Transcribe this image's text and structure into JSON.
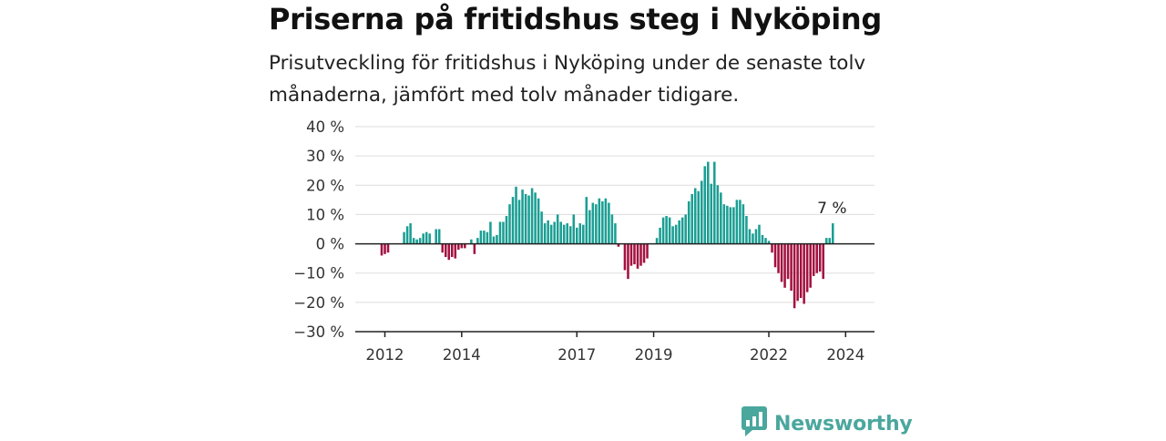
{
  "header": {
    "title": "Priserna på fritidshus steg i Nyköping",
    "subtitle": "Prisutveckling för fritidshus i Nyköping under de senaste tolv månaderna, jämfört med tolv månader tidigare."
  },
  "brand": {
    "name": "Newsworthy",
    "icon": "newsworthy-logo-icon",
    "color": "#4aa79d"
  },
  "colors": {
    "positive": "#1a9e93",
    "negative": "#a3103f",
    "grid": "#dddddd",
    "axis": "#222222"
  },
  "chart_data": {
    "type": "bar",
    "title": "Priserna på fritidshus steg i Nyköping",
    "xlabel": "",
    "ylabel": "",
    "ylim": [
      -30,
      40
    ],
    "y_ticks": [
      "40 %",
      "30 %",
      "20 %",
      "10 %",
      "0 %",
      "−10 %",
      "−20 %",
      "−30 %"
    ],
    "x_ticks": [
      "2012",
      "2014",
      "2017",
      "2019",
      "2022",
      "2024"
    ],
    "x_tick_years": [
      2012,
      2014,
      2017,
      2019,
      2022,
      2024
    ],
    "start": "2011-12",
    "unit": "%",
    "annotation": "7 %",
    "values": [
      -4,
      -3.5,
      -3,
      0,
      0,
      0,
      0,
      4,
      6,
      7,
      2,
      1.5,
      2,
      3.5,
      4,
      3.5,
      0,
      5,
      5,
      -3,
      -4.5,
      -5.5,
      -4.5,
      -5,
      -2,
      -1.5,
      -1.5,
      0,
      1.5,
      -3.5,
      2,
      4.5,
      4.5,
      4,
      7.5,
      2.5,
      3,
      7.5,
      7.5,
      9.5,
      13.5,
      16,
      19.5,
      15,
      18.5,
      17,
      16.5,
      19,
      17.5,
      15.5,
      11,
      7,
      8,
      6.5,
      7.5,
      10,
      7.5,
      6.5,
      7,
      6,
      10,
      5.5,
      7,
      6.5,
      16,
      11.5,
      14,
      13.5,
      15.5,
      14.5,
      15.5,
      14,
      10,
      7,
      -1,
      0,
      -9,
      -12,
      -7.5,
      -7,
      -8.5,
      -7.5,
      -6.5,
      -5,
      0,
      0,
      2,
      5.5,
      9,
      9.5,
      9,
      6,
      6.5,
      8,
      9,
      10,
      14.5,
      17,
      19,
      18,
      21.5,
      26.5,
      28,
      20.5,
      28,
      20,
      17.5,
      13.5,
      13,
      12.5,
      12.5,
      15,
      15,
      13.5,
      9.5,
      5,
      3.5,
      5,
      6.5,
      3,
      2,
      1,
      -3,
      -8,
      -10,
      -13,
      -15,
      -12,
      -16,
      -22,
      -19.5,
      -18.5,
      -20.5,
      -16.5,
      -15,
      -11,
      -10,
      -9.5,
      -12,
      2,
      2,
      7
    ]
  }
}
